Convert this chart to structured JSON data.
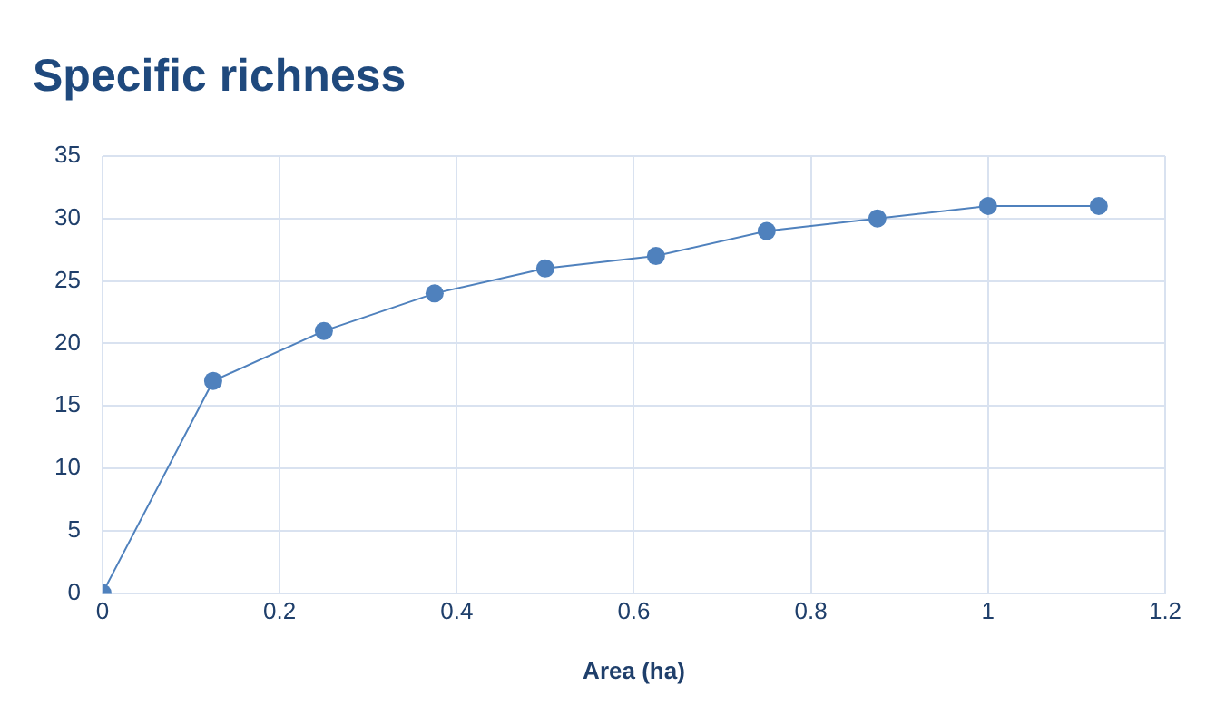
{
  "chart_data": {
    "type": "line",
    "title": "Specific richness",
    "xlabel": "Area (ha)",
    "series": [
      {
        "color": "#4f81bd",
        "x": [
          0,
          0.125,
          0.25,
          0.375,
          0.5,
          0.625,
          0.75,
          0.875,
          1,
          1.125
        ],
        "values": [
          0,
          17,
          21,
          24,
          26,
          27,
          29,
          30,
          31,
          31
        ]
      }
    ],
    "xlim": [
      0,
      1.2
    ],
    "xticks": [
      0,
      0.2,
      0.4,
      0.6,
      0.8,
      1,
      1.2
    ],
    "ylim": [
      0,
      35
    ],
    "yticks": [
      0,
      5,
      10,
      15,
      20,
      25,
      30,
      35
    ],
    "grid": true,
    "legend": false,
    "marker": "circle",
    "line_style": "solid"
  }
}
